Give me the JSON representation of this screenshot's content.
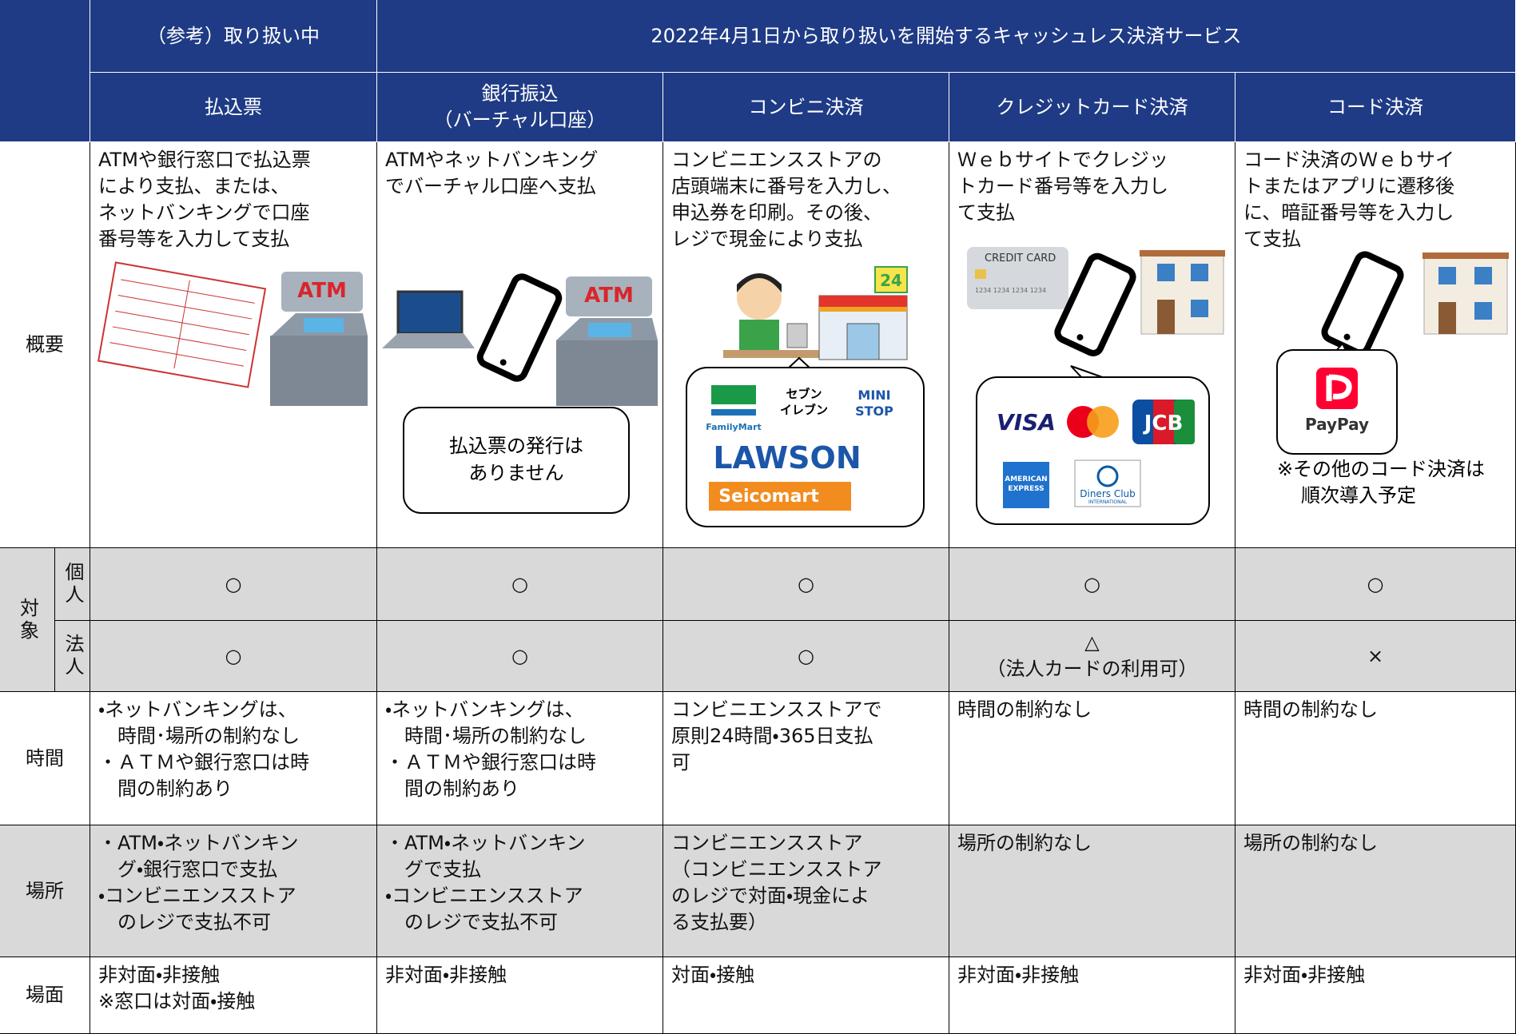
{
  "header": {
    "reference": "（参考）取り扱い中",
    "new_services": "2022年4月1日から取り扱いを開始するキャッシュレス決済サービス",
    "columns": [
      [
        "払込票"
      ],
      [
        "銀行振込",
        "（バーチャル口座）"
      ],
      [
        "コンビニ決済"
      ],
      [
        "クレジットカード決済"
      ],
      [
        "コード決済"
      ]
    ]
  },
  "overview": {
    "label": "概要",
    "cells": [
      [
        "ATMや銀行窓口で払込票",
        "により支払、または、",
        "ネットバンキングで口座",
        "番号等を入力して支払"
      ],
      [
        "ATMやネットバンキング",
        "でバーチャル口座へ支払"
      ],
      [
        "コンビニエンスストアの",
        "店頭端末に番号を入力し、",
        "申込券を印刷。その後、",
        "レジで現金により支払"
      ],
      [
        "Ｗｅｂサイトでクレジッ",
        "トカード番号等を入力し",
        "て支払"
      ],
      [
        "コード決済のＷｅｂサイ",
        "トまたはアプリに遷移後",
        "に、暗証番号等を入力し",
        "て支払"
      ]
    ]
  },
  "illustrations": {
    "atm": "ATM",
    "bubble_note": [
      "払込票の発行は",
      "ありません"
    ],
    "store_sign": "24",
    "konbini_brands": [
      "FamilyMart",
      "セブン",
      "イレブン",
      "MINI",
      "STOP",
      "LAWSON",
      "Seicomart"
    ],
    "credit_card": "CREDIT CARD",
    "card_number": "1234 1234 1234 1234",
    "card_brands": [
      "VISA",
      "JCB",
      "AMERICAN",
      "EXPRESS",
      "Diners Club",
      "INTERNATIONAL"
    ],
    "code_brand": "PayPay",
    "code_note": [
      "※その他のコード決済は",
      "順次導入予定"
    ]
  },
  "target": {
    "label": "対象",
    "rows": [
      {
        "label": "個人",
        "cells": [
          "○",
          "○",
          "○",
          "○",
          "○"
        ]
      },
      {
        "label": "法人",
        "cells": [
          "○",
          "○",
          "○",
          [
            "△",
            "（法人カードの利用可）"
          ],
          "×"
        ]
      }
    ]
  },
  "time": {
    "label": "時間",
    "cells": [
      [
        "・ネットバンキングは、",
        "　時間･場所の制約なし",
        "・ＡＴＭや銀行窓口は時",
        "　間の制約あり"
      ],
      [
        "・ネットバンキングは、",
        "　時間･場所の制約なし",
        "・ＡＴＭや銀行窓口は時",
        "　間の制約あり"
      ],
      [
        "コンビニエンスストアで",
        "原則24時間・365日支払",
        "可"
      ],
      [
        "時間の制約なし"
      ],
      [
        "時間の制約なし"
      ]
    ]
  },
  "place": {
    "label": "場所",
    "cells": [
      [
        "・ATM・ネットバンキン",
        "　グ・銀行窓口で支払",
        "・コンビニエンスストア",
        "　のレジで支払不可"
      ],
      [
        "・ATM・ネットバンキン",
        "　グで支払",
        "・コンビニエンスストア",
        "　のレジで支払不可"
      ],
      [
        "コンビニエンスストア",
        "（コンビニエンスストア",
        "のレジで対面・現金によ",
        "る支払要）"
      ],
      [
        "場所の制約なし"
      ],
      [
        "場所の制約なし"
      ]
    ]
  },
  "scene": {
    "label": "場面",
    "cells": [
      [
        "非対面・非接触",
        "※窓口は対面・接触"
      ],
      [
        "非対面・非接触"
      ],
      [
        "対面・接触"
      ],
      [
        "非対面・非接触"
      ],
      [
        "非対面・非接触"
      ]
    ]
  }
}
